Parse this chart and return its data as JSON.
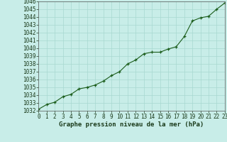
{
  "x": [
    0,
    1,
    2,
    3,
    4,
    5,
    6,
    7,
    8,
    9,
    10,
    11,
    12,
    13,
    14,
    15,
    16,
    17,
    18,
    19,
    20,
    21,
    22,
    23
  ],
  "y": [
    1032.2,
    1032.8,
    1033.1,
    1033.8,
    1034.1,
    1034.8,
    1035.0,
    1035.3,
    1035.8,
    1036.5,
    1037.0,
    1038.0,
    1038.5,
    1039.3,
    1039.5,
    1039.5,
    1039.9,
    1040.2,
    1041.5,
    1043.5,
    1043.9,
    1044.1,
    1045.0,
    1045.8
  ],
  "line_color": "#1a5c1a",
  "marker_color": "#1a5c1a",
  "bg_color": "#c8ede8",
  "grid_color": "#a8d8d0",
  "xlabel": "Graphe pression niveau de la mer (hPa)",
  "ylim": [
    1032,
    1046
  ],
  "xlim": [
    0,
    23
  ],
  "yticks": [
    1032,
    1033,
    1034,
    1035,
    1036,
    1037,
    1038,
    1039,
    1040,
    1041,
    1042,
    1043,
    1044,
    1045,
    1046
  ],
  "xticks": [
    0,
    1,
    2,
    3,
    4,
    5,
    6,
    7,
    8,
    9,
    10,
    11,
    12,
    13,
    14,
    15,
    16,
    17,
    18,
    19,
    20,
    21,
    22,
    23
  ],
  "tick_fontsize": 5.5,
  "xlabel_fontsize": 6.5
}
